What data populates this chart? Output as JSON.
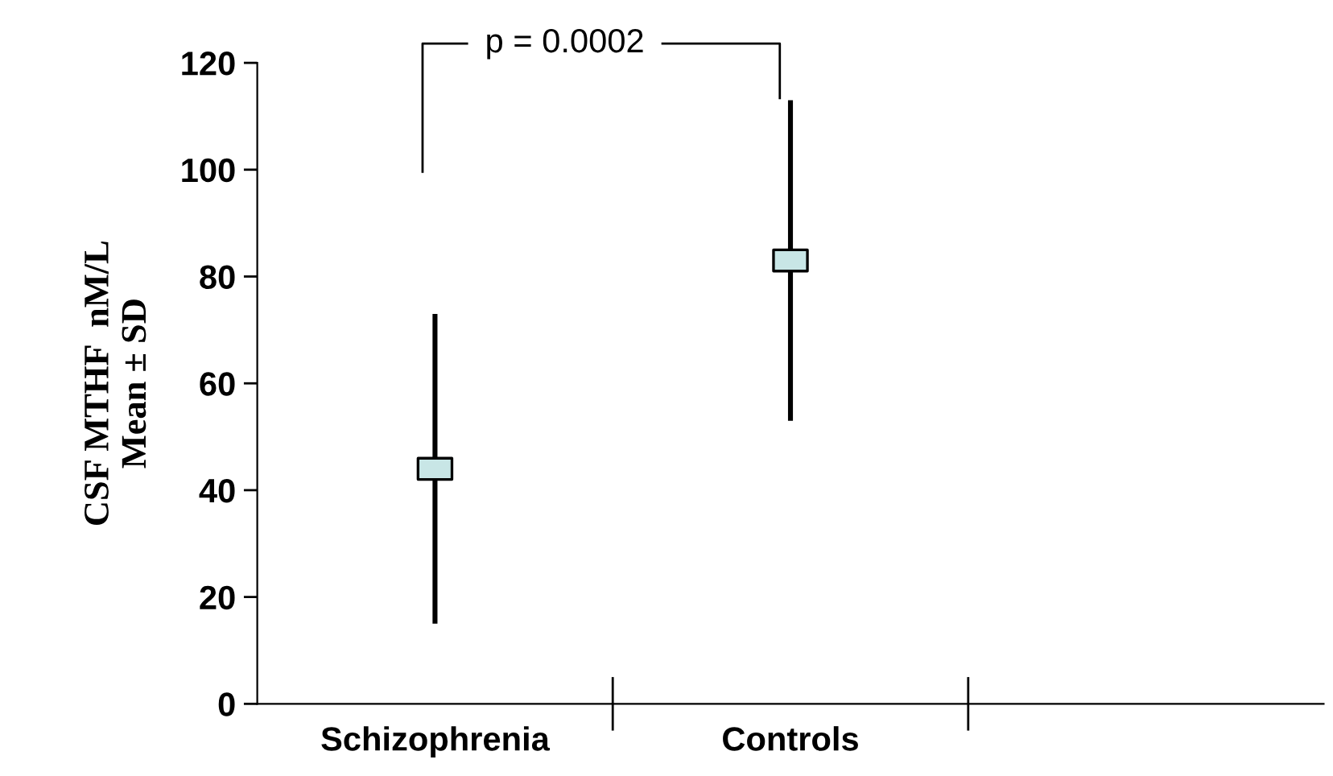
{
  "chart_data": {
    "type": "scatter",
    "ylabel": "CSF MTHF  nM/L\nMean ± SD",
    "categories": [
      "Schizophrenia",
      "Controls",
      null
    ],
    "values": [
      44,
      83,
      null
    ],
    "errors": [
      29,
      30,
      null
    ],
    "color": "#c8e6e6",
    "marker": "square",
    "ylim": [
      0,
      120
    ],
    "yticks": [
      0,
      20,
      40,
      60,
      80,
      100,
      120
    ],
    "grid": false,
    "legend": false,
    "annotations": [
      "p = 0.0002"
    ]
  }
}
